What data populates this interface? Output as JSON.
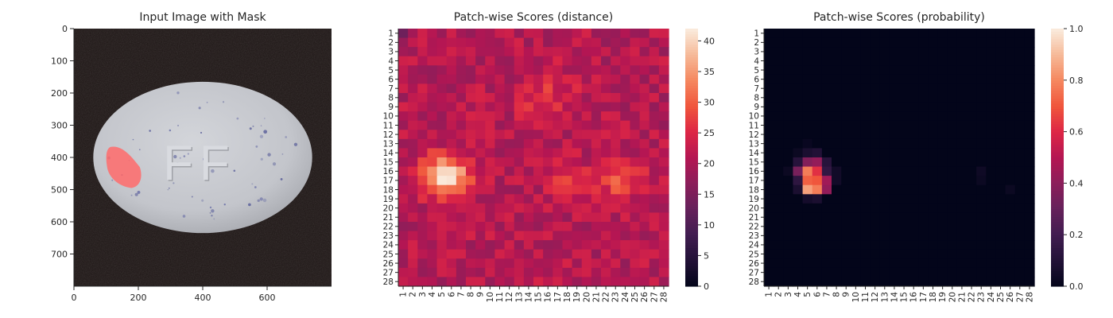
{
  "chart_data": [
    {
      "type": "image",
      "title": "Input Image with Mask",
      "x_ticks": [
        0,
        200,
        400,
        600
      ],
      "y_ticks": [
        0,
        100,
        200,
        300,
        400,
        500,
        600,
        700
      ],
      "xlim": [
        0,
        800
      ],
      "ylim": [
        800,
        0
      ],
      "pill": {
        "center": [
          400,
          400
        ],
        "rx": 340,
        "ry": 235,
        "color": "#c9cbd0"
      },
      "embossed_text": "FF",
      "mask": {
        "color": "#ff6b6b",
        "approx_bounds": {
          "x": [
            100,
            210
          ],
          "y": [
            365,
            495
          ]
        }
      }
    },
    {
      "type": "heatmap",
      "title": "Patch-wise Scores (distance)",
      "labels": [
        "1",
        "2",
        "3",
        "4",
        "5",
        "6",
        "7",
        "8",
        "9",
        "10",
        "11",
        "12",
        "13",
        "14",
        "15",
        "16",
        "17",
        "18",
        "19",
        "20",
        "21",
        "22",
        "23",
        "24",
        "25",
        "26",
        "27",
        "28"
      ],
      "colorbar_ticks": [
        0,
        5,
        10,
        15,
        20,
        25,
        30,
        35,
        40
      ],
      "vmin": 0,
      "vmax": 42,
      "colormap": "rocket",
      "base_value": 21,
      "hotspots": [
        {
          "row": 16.5,
          "col": 5.5,
          "peak": 41,
          "sigma": 1.6
        },
        {
          "row": 8.0,
          "col": 16.0,
          "peak": 26,
          "sigma": 2.0
        },
        {
          "row": 17.0,
          "col": 23.5,
          "peak": 28,
          "sigma": 1.7
        },
        {
          "row": 17.0,
          "col": 18.0,
          "peak": 25,
          "sigma": 1.6
        },
        {
          "row": 1.0,
          "col": 1.0,
          "peak": 12,
          "sigma": 0.6
        }
      ]
    },
    {
      "type": "heatmap",
      "title": "Patch-wise Scores (probability)",
      "labels": [
        "1",
        "2",
        "3",
        "4",
        "5",
        "6",
        "7",
        "8",
        "9",
        "10",
        "11",
        "12",
        "13",
        "14",
        "15",
        "16",
        "17",
        "18",
        "19",
        "20",
        "21",
        "22",
        "23",
        "24",
        "25",
        "26",
        "27",
        "28"
      ],
      "colorbar_ticks": [
        0.0,
        0.2,
        0.4,
        0.6,
        0.8,
        1.0
      ],
      "colorbar_labels": [
        "0.0",
        "0.2",
        "0.4",
        "0.6",
        "0.8",
        "1.0"
      ],
      "vmin": 0,
      "vmax": 1,
      "colormap": "rocket",
      "cells": [
        {
          "row": 16,
          "col": 5,
          "value": 0.78
        },
        {
          "row": 16,
          "col": 6,
          "value": 0.62
        },
        {
          "row": 17,
          "col": 5,
          "value": 0.72
        },
        {
          "row": 17,
          "col": 6,
          "value": 0.7
        },
        {
          "row": 18,
          "col": 5,
          "value": 0.85
        },
        {
          "row": 18,
          "col": 6,
          "value": 0.78
        },
        {
          "row": 15,
          "col": 5,
          "value": 0.38
        },
        {
          "row": 15,
          "col": 6,
          "value": 0.42
        },
        {
          "row": 16,
          "col": 4,
          "value": 0.35
        },
        {
          "row": 17,
          "col": 7,
          "value": 0.45
        },
        {
          "row": 18,
          "col": 7,
          "value": 0.42
        },
        {
          "row": 15,
          "col": 4,
          "value": 0.12
        },
        {
          "row": 14,
          "col": 5,
          "value": 0.08
        },
        {
          "row": 14,
          "col": 6,
          "value": 0.1
        },
        {
          "row": 15,
          "col": 7,
          "value": 0.12
        },
        {
          "row": 16,
          "col": 7,
          "value": 0.15
        },
        {
          "row": 16,
          "col": 8,
          "value": 0.05
        },
        {
          "row": 17,
          "col": 4,
          "value": 0.14
        },
        {
          "row": 17,
          "col": 8,
          "value": 0.05
        },
        {
          "row": 18,
          "col": 4,
          "value": 0.08
        },
        {
          "row": 19,
          "col": 5,
          "value": 0.06
        },
        {
          "row": 19,
          "col": 6,
          "value": 0.08
        },
        {
          "row": 14,
          "col": 4,
          "value": 0.03
        },
        {
          "row": 13,
          "col": 5,
          "value": 0.02
        },
        {
          "row": 16,
          "col": 3,
          "value": 0.03
        },
        {
          "row": 16,
          "col": 23,
          "value": 0.04
        },
        {
          "row": 17,
          "col": 23,
          "value": 0.03
        },
        {
          "row": 18,
          "col": 26,
          "value": 0.03
        }
      ]
    }
  ]
}
